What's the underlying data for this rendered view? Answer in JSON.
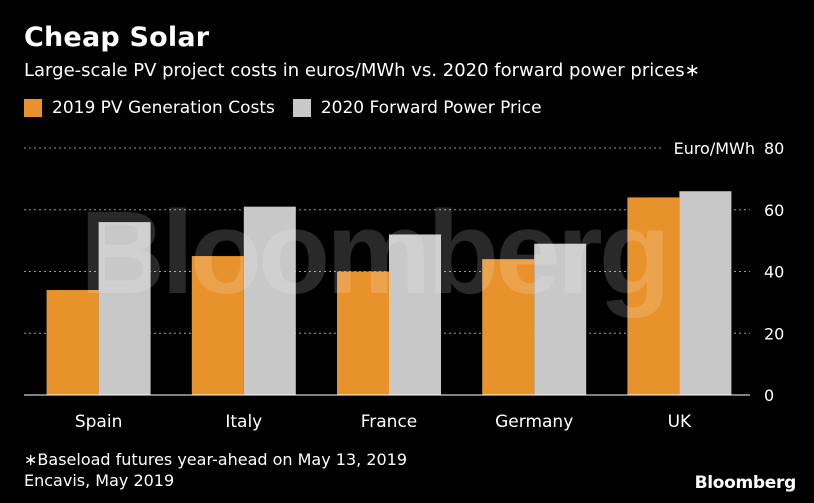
{
  "header": {
    "title": "Cheap Solar",
    "subtitle": "Large-scale PV project costs in euros/MWh vs. 2020 forward power prices∗"
  },
  "colors": {
    "background": "#000000",
    "series_1": "#e8922c",
    "series_2": "#c8c8c8",
    "grid": "#9a9a9a"
  },
  "chart_data": {
    "type": "bar",
    "categories": [
      "Spain",
      "Italy",
      "France",
      "Germany",
      "UK"
    ],
    "series": [
      {
        "name": "2019 PV Generation Costs",
        "values": [
          34,
          45,
          40,
          44,
          64
        ]
      },
      {
        "name": "2020 Forward Power Price",
        "values": [
          56,
          61,
          52,
          49,
          66
        ]
      }
    ],
    "ylabel": "Euro/MWh",
    "ylim": [
      0,
      80
    ],
    "yticks": [
      0,
      20,
      40,
      60,
      80
    ],
    "y_axis_side": "right",
    "grid": true,
    "legend_position": "top-left"
  },
  "footer": {
    "note": "∗Baseload futures year-ahead on May 13, 2019",
    "source": "Encavis, May 2019",
    "brand": "Bloomberg",
    "watermark": "Bloomberg"
  }
}
